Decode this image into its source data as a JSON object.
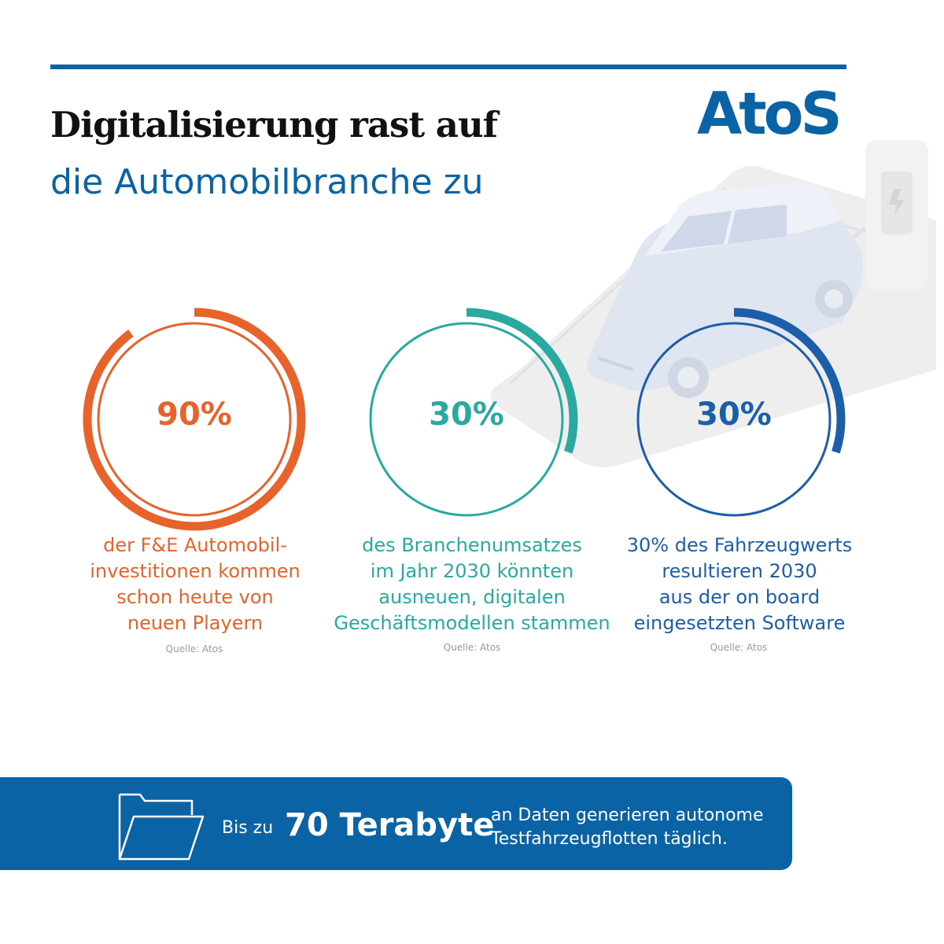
{
  "header": {
    "title_line1": "Digitalisierung rast auf",
    "title_line2": "die Automobilbranche zu",
    "logo_text": "AtoS"
  },
  "colors": {
    "blue": "#0a63a5",
    "orange": "#e8622b",
    "teal": "#2aa9a0",
    "navy": "#1d5ea8"
  },
  "chart_data": {
    "type": "gauge",
    "items": [
      {
        "value": 90,
        "label": "90%",
        "caption": [
          "der F&E Automobil-",
          "investitionen kommen",
          "schon heute von",
          "neuen Playern"
        ],
        "source": "Quelle: Atos",
        "color": "#e8622b"
      },
      {
        "value": 30,
        "label": "30%",
        "caption": [
          "des Branchenumsatzes",
          "im Jahr 2030 könnten",
          "ausneuen, digitalen",
          "Geschäftsmodellen stammen"
        ],
        "source": "Quelle: Atos",
        "color": "#2aa9a0"
      },
      {
        "value": 30,
        "label": "30%",
        "caption": [
          "30% des Fahrzeugwerts",
          "resultieren 2030",
          "aus der on board",
          "eingesetzten Software"
        ],
        "source": "Quelle: Atos",
        "color": "#1d5ea8"
      }
    ]
  },
  "banner": {
    "icon": "folder-icon",
    "prefix": "Bis zu",
    "value": "70 Terabyte",
    "suffix_line1": "an Daten generieren autonome",
    "suffix_line2": "Testfahrzeugflotten täglich."
  }
}
